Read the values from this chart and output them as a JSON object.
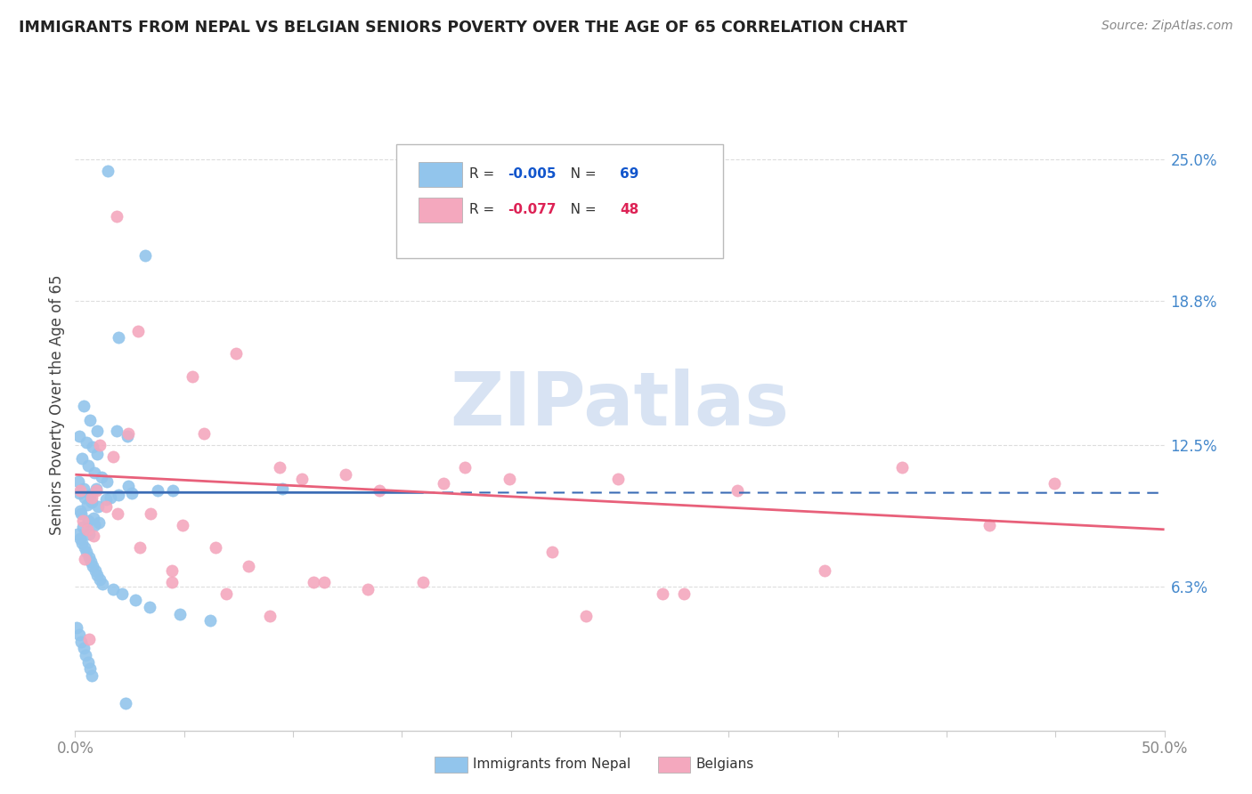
{
  "title": "IMMIGRANTS FROM NEPAL VS BELGIAN SENIORS POVERTY OVER THE AGE OF 65 CORRELATION CHART",
  "source": "Source: ZipAtlas.com",
  "ylabel": "Seniors Poverty Over the Age of 65",
  "ytick_labels": [
    "25.0%",
    "18.8%",
    "12.5%",
    "6.3%"
  ],
  "ytick_values": [
    25.0,
    18.8,
    12.5,
    6.3
  ],
  "xlim": [
    0.0,
    50.0
  ],
  "ylim": [
    0.0,
    28.5
  ],
  "legend_r1_label": "R = ",
  "legend_r1_val": "-0.005",
  "legend_n1_label": "N = ",
  "legend_n1_val": "69",
  "legend_r2_label": "R = ",
  "legend_r2_val": "-0.077",
  "legend_n2_label": "N = ",
  "legend_n2_val": "48",
  "legend_label1": "Immigrants from Nepal",
  "legend_label2": "Belgians",
  "color_blue": "#92C5EC",
  "color_pink": "#F4A8BE",
  "color_blue_line": "#3B6CB5",
  "color_pink_line": "#E8607A",
  "watermark_color": "#C8D8EE",
  "grid_color": "#DDDDDD",
  "spine_color": "#CCCCCC",
  "title_color": "#222222",
  "source_color": "#888888",
  "ytick_color": "#4488CC",
  "xtick_color": "#888888",
  "nepal_x": [
    1.5,
    3.2,
    2.0,
    0.4,
    0.7,
    1.0,
    0.2,
    0.5,
    0.8,
    1.0,
    0.3,
    0.6,
    0.9,
    1.2,
    0.15,
    0.4,
    0.7,
    1.4,
    1.9,
    2.4,
    0.55,
    0.25,
    0.85,
    1.1,
    0.35,
    0.65,
    0.95,
    0.18,
    0.45,
    0.75,
    1.05,
    0.28,
    0.58,
    0.88,
    1.45,
    2.45,
    3.8,
    0.12,
    0.22,
    0.32,
    0.42,
    0.52,
    0.62,
    0.72,
    0.82,
    0.92,
    1.02,
    1.15,
    1.25,
    1.75,
    2.15,
    2.75,
    3.4,
    4.8,
    6.2,
    0.08,
    0.18,
    0.28,
    0.38,
    0.48,
    0.58,
    0.68,
    0.78,
    1.6,
    2.0,
    2.6,
    4.5,
    9.5,
    2.3
  ],
  "nepal_y": [
    24.5,
    20.8,
    17.2,
    14.2,
    13.6,
    13.1,
    12.9,
    12.6,
    12.4,
    12.1,
    11.9,
    11.6,
    11.3,
    11.1,
    10.9,
    10.6,
    10.3,
    10.1,
    13.1,
    12.9,
    9.9,
    9.6,
    9.3,
    9.1,
    8.9,
    8.6,
    10.6,
    10.4,
    10.2,
    10.0,
    9.8,
    9.5,
    9.2,
    9.0,
    10.9,
    10.7,
    10.5,
    8.6,
    8.4,
    8.2,
    8.0,
    7.8,
    7.6,
    7.4,
    7.2,
    7.0,
    6.8,
    6.6,
    6.4,
    6.2,
    6.0,
    5.7,
    5.4,
    5.1,
    4.8,
    4.5,
    4.2,
    3.9,
    3.6,
    3.3,
    3.0,
    2.7,
    2.4,
    10.2,
    10.3,
    10.4,
    10.5,
    10.6,
    1.2
  ],
  "belgian_x": [
    0.25,
    0.75,
    1.4,
    1.9,
    2.9,
    5.4,
    5.9,
    7.4,
    9.4,
    10.4,
    12.4,
    16.9,
    17.9,
    21.9,
    24.9,
    30.4,
    34.4,
    0.35,
    0.55,
    0.85,
    1.15,
    1.75,
    2.45,
    3.45,
    4.45,
    4.95,
    6.45,
    7.95,
    10.95,
    13.95,
    19.95,
    26.95,
    37.95,
    44.95,
    0.45,
    0.95,
    1.95,
    2.95,
    4.45,
    6.95,
    8.95,
    11.45,
    15.95,
    23.45,
    0.65,
    13.45,
    27.95,
    41.95
  ],
  "belgian_y": [
    10.5,
    10.2,
    9.8,
    22.5,
    17.5,
    15.5,
    13.0,
    16.5,
    11.5,
    11.0,
    11.2,
    10.8,
    11.5,
    7.8,
    11.0,
    10.5,
    7.0,
    9.2,
    8.8,
    8.5,
    12.5,
    12.0,
    13.0,
    9.5,
    6.5,
    9.0,
    8.0,
    7.2,
    6.5,
    10.5,
    11.0,
    6.0,
    11.5,
    10.8,
    7.5,
    10.5,
    9.5,
    8.0,
    7.0,
    6.0,
    5.0,
    6.5,
    6.5,
    5.0,
    4.0,
    6.2,
    6.0,
    9.0
  ],
  "nepal_line_x0": 0.0,
  "nepal_line_x1": 50.0,
  "nepal_line_y0": 10.42,
  "nepal_line_y1": 10.4,
  "nepal_dash_start": 16.0,
  "belgian_line_x0": 0.0,
  "belgian_line_x1": 50.0,
  "belgian_line_y0": 11.2,
  "belgian_line_y1": 8.8
}
